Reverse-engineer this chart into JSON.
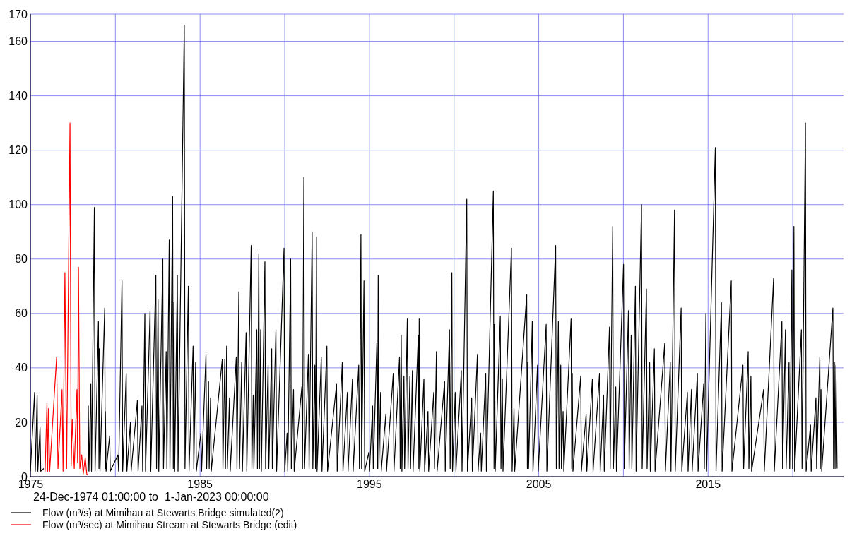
{
  "chart_data": {
    "type": "line",
    "xlim": [
      1974.98,
      2023.0
    ],
    "xticks": [
      1975,
      {
        "value": 1980,
        "label": null
      },
      1985,
      {
        "value": 1990,
        "label": null
      },
      1995,
      {
        "value": 2000,
        "label": null
      },
      2005,
      {
        "value": 2010,
        "label": null
      },
      2015,
      {
        "value": 2020,
        "label": null
      }
    ],
    "ylim": [
      0,
      170
    ],
    "yticks": [
      0,
      20,
      40,
      60,
      80,
      100,
      120,
      140,
      160,
      170
    ],
    "grid": true,
    "legend": "bottom left",
    "line_style": "solid",
    "annotations": [
      "24-Dec-1974 01:00:00 to  1-Jan-2023 00:00:00"
    ],
    "series": [
      {
        "name": "Flow (m³/s) at Mimihau at Stewarts Bridge simulated(2)",
        "color": "#000000",
        "x": [
          1974.98,
          1975.23,
          1975.27,
          1975.38,
          1975.42,
          1975.55,
          1975.59,
          1975.77,
          1976.5,
          1978.38,
          1978.4,
          1978.44,
          1978.55,
          1978.59,
          1978.76,
          1978.8,
          1979.0,
          1979.03,
          1979.05,
          1979.09,
          1979.37,
          1979.4,
          1979.41,
          1979.45,
          1979.66,
          1979.7,
          1980.15,
          1980.19,
          1980.39,
          1980.43,
          1980.64,
          1980.68,
          1980.89,
          1980.93,
          1981.3,
          1981.34,
          1981.57,
          1981.61,
          1981.74,
          1981.78,
          1982.05,
          1982.09,
          1982.39,
          1982.43,
          1982.52,
          1982.56,
          1982.8,
          1982.84,
          1983.0,
          1983.04,
          1983.18,
          1983.22,
          1983.38,
          1983.42,
          1983.46,
          1983.5,
          1983.66,
          1983.7,
          1984.07,
          1984.11,
          1984.31,
          1984.35,
          1984.59,
          1984.63,
          1984.74,
          1984.78,
          1985.05,
          1985.09,
          1985.35,
          1985.39,
          1985.5,
          1985.54,
          1985.62,
          1985.66,
          1986.31,
          1986.35,
          1986.46,
          1986.5,
          1986.57,
          1986.61,
          1986.74,
          1986.78,
          1987.14,
          1987.18,
          1987.29,
          1987.33,
          1987.46,
          1987.5,
          1987.72,
          1987.76,
          1988.02,
          1988.06,
          1988.14,
          1988.18,
          1988.35,
          1988.39,
          1988.47,
          1988.51,
          1988.58,
          1988.62,
          1988.83,
          1988.87,
          1989.02,
          1989.06,
          1989.23,
          1989.27,
          1989.48,
          1989.52,
          1989.96,
          1990.0,
          1990.14,
          1990.18,
          1990.35,
          1990.39,
          1990.52,
          1990.56,
          1991.01,
          1991.05,
          1991.13,
          1991.17,
          1991.4,
          1991.44,
          1991.62,
          1991.66,
          1991.78,
          1991.82,
          1991.87,
          1991.91,
          1992.16,
          1992.2,
          1992.49,
          1992.53,
          1993.06,
          1993.1,
          1993.4,
          1993.44,
          1993.7,
          1993.74,
          1994.0,
          1994.04,
          1994.37,
          1994.41,
          1994.5,
          1994.54,
          1994.68,
          1994.72,
          1994.97,
          1995.01,
          1995.19,
          1995.23,
          1995.44,
          1995.48,
          1995.52,
          1995.56,
          1995.66,
          1995.7,
          1995.97,
          1996.01,
          1996.41,
          1996.45,
          1996.78,
          1996.82,
          1996.88,
          1996.92,
          1997.04,
          1997.08,
          1997.24,
          1997.28,
          1997.39,
          1997.43,
          1997.54,
          1997.58,
          1997.89,
          1997.92,
          1997.94,
          1997.98,
          1998.22,
          1998.26,
          1998.46,
          1998.5,
          1998.8,
          1998.84,
          1998.96,
          1999.0,
          1999.44,
          1999.48,
          1999.73,
          1999.77,
          1999.87,
          1999.91,
          2000.07,
          2000.11,
          2000.43,
          2000.47,
          2000.75,
          2000.79,
          2001.04,
          2001.08,
          2001.38,
          2001.42,
          2001.57,
          2001.61,
          2001.87,
          2001.91,
          2002.32,
          2002.36,
          2002.39,
          2002.43,
          2002.73,
          2002.77,
          2002.85,
          2002.89,
          2003.39,
          2003.43,
          2003.54,
          2003.58,
          2004.29,
          2004.33,
          2004.36,
          2004.4,
          2004.62,
          2004.66,
          2004.93,
          2004.97,
          2005.44,
          2005.48,
          2006.0,
          2006.04,
          2006.16,
          2006.2,
          2006.3,
          2006.34,
          2006.44,
          2006.48,
          2006.91,
          2006.95,
          2006.98,
          2007.02,
          2007.48,
          2007.52,
          2007.8,
          2007.84,
          2008.17,
          2008.21,
          2008.59,
          2008.63,
          2008.83,
          2008.87,
          2009.18,
          2009.22,
          2009.37,
          2009.41,
          2009.55,
          2009.59,
          2010.01,
          2010.05,
          2010.3,
          2010.34,
          2010.46,
          2010.5,
          2010.71,
          2010.75,
          2011.07,
          2011.11,
          2011.36,
          2011.4,
          2011.55,
          2011.59,
          2011.83,
          2011.87,
          2012.44,
          2012.48,
          2012.77,
          2012.81,
          2013.02,
          2013.06,
          2013.41,
          2013.45,
          2013.78,
          2013.82,
          2014.02,
          2014.06,
          2014.37,
          2014.41,
          2014.74,
          2014.78,
          2014.87,
          2014.91,
          2015.43,
          2015.47,
          2015.79,
          2015.83,
          2016.37,
          2016.41,
          2017.06,
          2017.1,
          2017.37,
          2017.41,
          2017.53,
          2017.57,
          2018.28,
          2018.32,
          2018.87,
          2018.91,
          2019.36,
          2019.4,
          2019.57,
          2019.61,
          2019.78,
          2019.82,
          2019.95,
          2019.99,
          2020.07,
          2020.11,
          2020.51,
          2020.55,
          2020.75,
          2020.79,
          2021.05,
          2021.09,
          2021.37,
          2021.41,
          2021.6,
          2021.63,
          2021.67,
          2021.71,
          2022.37,
          2022.41,
          2022.46,
          2022.5,
          2022.55,
          2022.62
        ],
        "values": [
          2,
          31,
          2,
          30,
          2,
          18,
          2,
          3,
          null,
          2,
          26,
          2,
          34,
          2,
          99,
          2,
          57,
          3,
          47,
          2,
          62,
          3,
          24,
          2,
          15,
          2,
          8,
          2,
          72,
          2,
          38,
          2,
          20,
          2,
          28,
          2,
          26,
          2,
          60,
          2,
          61,
          2,
          74,
          3,
          65,
          2,
          80,
          3,
          46,
          3,
          87,
          3,
          103,
          3,
          64,
          2,
          74,
          2,
          166,
          3,
          70,
          2,
          48,
          3,
          42,
          2,
          16,
          2,
          45,
          3,
          35,
          3,
          29,
          2,
          43,
          3,
          43,
          3,
          48,
          3,
          29,
          2,
          44,
          3,
          68,
          3,
          42,
          2,
          53,
          2,
          85,
          3,
          30,
          3,
          54,
          3,
          82,
          3,
          54,
          2,
          79,
          3,
          41,
          3,
          47,
          3,
          54,
          2,
          84,
          2,
          16,
          2,
          80,
          3,
          32,
          2,
          33,
          3,
          110,
          3,
          45,
          3,
          90,
          3,
          41,
          3,
          88,
          2,
          44,
          2,
          48,
          2,
          34,
          2,
          42,
          2,
          31,
          2,
          36,
          2,
          41,
          3,
          89,
          3,
          72,
          2,
          9,
          2,
          26,
          3,
          49,
          3,
          74,
          3,
          31,
          2,
          23,
          2,
          38,
          2,
          44,
          3,
          52,
          2,
          37,
          3,
          58,
          3,
          37,
          3,
          39,
          2,
          52,
          3,
          58,
          2,
          36,
          2,
          24,
          2,
          31,
          3,
          46,
          2,
          35,
          2,
          54,
          3,
          75,
          2,
          31,
          2,
          39,
          2,
          102,
          2,
          29,
          2,
          45,
          2,
          16,
          2,
          38,
          2,
          105,
          3,
          56,
          2,
          59,
          3,
          36,
          2,
          84,
          2,
          25,
          2,
          67,
          3,
          42,
          3,
          57,
          2,
          41,
          2,
          56,
          2,
          85,
          3,
          57,
          3,
          41,
          3,
          24,
          2,
          58,
          3,
          38,
          2,
          37,
          2,
          23,
          2,
          36,
          2,
          38,
          2,
          30,
          2,
          55,
          3,
          92,
          3,
          33,
          2,
          78,
          3,
          61,
          3,
          52,
          3,
          70,
          2,
          100,
          3,
          69,
          3,
          42,
          2,
          47,
          2,
          49,
          2,
          42,
          2,
          98,
          2,
          62,
          2,
          31,
          2,
          32,
          2,
          38,
          2,
          34,
          3,
          60,
          2,
          121,
          2,
          64,
          2,
          72,
          2,
          41,
          3,
          46,
          3,
          37,
          2,
          32,
          2,
          73,
          2,
          57,
          3,
          54,
          3,
          42,
          3,
          76,
          3,
          92,
          2,
          54,
          3,
          130,
          2,
          19,
          2,
          29,
          3,
          44,
          3,
          32,
          2,
          62,
          3,
          42,
          3,
          41,
          3
        ]
      },
      {
        "name": "Flow (m³/sec) at Mimihau Stream at Stewarts Bridge (edit)",
        "color": "#ff0000",
        "x": [
          1975.85,
          1975.96,
          1976.0,
          1976.05,
          1976.12,
          1976.46,
          1976.53,
          1976.61,
          1976.85,
          1976.91,
          1977.02,
          1977.12,
          1977.32,
          1977.39,
          1977.45,
          1977.57,
          1977.73,
          1977.77,
          1977.82,
          1977.9,
          1978.01,
          1978.1,
          1978.22,
          1978.31,
          1978.39
        ],
        "values": [
          2,
          27,
          2,
          25,
          2,
          37,
          44,
          3,
          32,
          2,
          75,
          3,
          130,
          4,
          21,
          3,
          32,
          5,
          77,
          3,
          8,
          1,
          7,
          1,
          0.5
        ]
      }
    ]
  }
}
